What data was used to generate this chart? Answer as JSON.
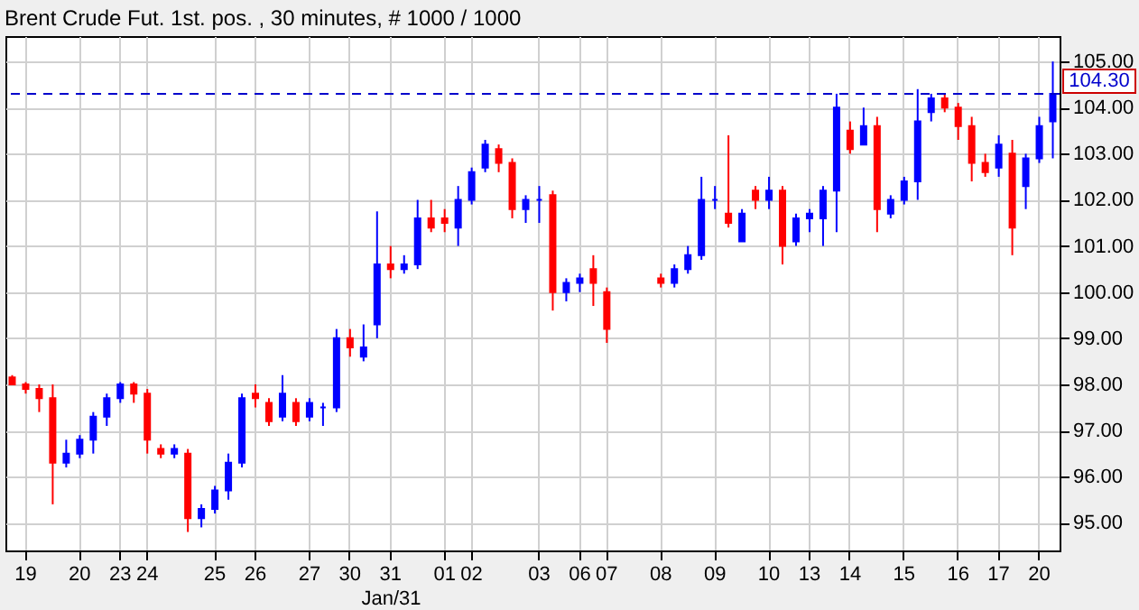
{
  "chart_data": {
    "type": "candlestick",
    "title": "Brent Crude Fut. 1st. pos. , 30 minutes, # 1000 / 1000",
    "categories": [
      null,
      "19",
      null,
      null,
      null,
      "20",
      null,
      null,
      "23",
      null,
      "24",
      null,
      null,
      null,
      null,
      "25",
      null,
      null,
      "26",
      null,
      null,
      null,
      "27",
      null,
      null,
      "30",
      null,
      null,
      "31",
      null,
      null,
      null,
      "01",
      null,
      "02",
      null,
      null,
      null,
      null,
      "03",
      null,
      null,
      "06",
      null,
      "07",
      null,
      null,
      null,
      "08",
      null,
      null,
      null,
      "09",
      null,
      null,
      null,
      "10",
      null,
      null,
      "13",
      null,
      null,
      "14",
      null,
      null,
      null,
      "15",
      null,
      null,
      null,
      "16",
      null,
      null,
      "17",
      null,
      null,
      "20",
      null
    ],
    "ohlc": [
      [
        98.15,
        98.2,
        98.0,
        98.0
      ],
      [
        98.0,
        98.05,
        97.8,
        97.9
      ],
      [
        97.9,
        98.0,
        97.4,
        97.7
      ],
      [
        97.7,
        98.0,
        95.4,
        96.3
      ],
      [
        96.3,
        96.8,
        96.2,
        96.5
      ],
      [
        96.5,
        96.9,
        96.4,
        96.8
      ],
      [
        96.8,
        97.4,
        96.5,
        97.3
      ],
      [
        97.3,
        97.8,
        97.1,
        97.7
      ],
      [
        97.7,
        98.05,
        97.6,
        98.0
      ],
      [
        98.0,
        98.05,
        97.6,
        97.8
      ],
      [
        97.8,
        97.9,
        96.5,
        96.8
      ],
      [
        96.6,
        96.7,
        96.4,
        96.5
      ],
      [
        96.5,
        96.7,
        96.4,
        96.6
      ],
      [
        96.5,
        96.6,
        94.8,
        95.1
      ],
      [
        95.1,
        95.4,
        94.9,
        95.3
      ],
      [
        95.3,
        95.8,
        95.2,
        95.7
      ],
      [
        95.7,
        96.5,
        95.5,
        96.3
      ],
      [
        96.3,
        97.8,
        96.2,
        97.7
      ],
      [
        97.8,
        98.0,
        97.5,
        97.7
      ],
      [
        97.6,
        97.7,
        97.1,
        97.2
      ],
      [
        97.3,
        98.2,
        97.2,
        97.8
      ],
      [
        97.6,
        97.7,
        97.1,
        97.2
      ],
      [
        97.3,
        97.7,
        97.2,
        97.6
      ],
      [
        97.5,
        97.6,
        97.1,
        97.5
      ],
      [
        97.5,
        99.2,
        97.4,
        99.0
      ],
      [
        99.0,
        99.2,
        98.6,
        98.8
      ],
      [
        98.6,
        99.3,
        98.5,
        98.8
      ],
      [
        99.3,
        101.75,
        99.0,
        100.6
      ],
      [
        100.6,
        101.0,
        100.3,
        100.5
      ],
      [
        100.5,
        100.8,
        100.4,
        100.6
      ],
      [
        100.6,
        102.0,
        100.5,
        101.6
      ],
      [
        101.6,
        102.0,
        101.3,
        101.4
      ],
      [
        101.6,
        101.8,
        101.3,
        101.5
      ],
      [
        101.4,
        102.3,
        101.0,
        102.0
      ],
      [
        102.0,
        102.7,
        101.9,
        102.6
      ],
      [
        102.7,
        103.3,
        102.6,
        103.2
      ],
      [
        103.1,
        103.2,
        102.6,
        102.8
      ],
      [
        102.8,
        102.9,
        101.6,
        101.8
      ],
      [
        101.8,
        102.1,
        101.5,
        102.0
      ],
      [
        102.0,
        102.3,
        101.5,
        102.0
      ],
      [
        102.1,
        102.2,
        99.6,
        100.0
      ],
      [
        100.0,
        100.3,
        99.8,
        100.2
      ],
      [
        100.2,
        100.4,
        100.0,
        100.3
      ],
      [
        100.5,
        100.8,
        99.7,
        100.2
      ],
      [
        100.0,
        100.1,
        98.9,
        99.2
      ],
      null,
      null,
      null,
      [
        100.3,
        100.4,
        100.1,
        100.2
      ],
      [
        100.2,
        100.6,
        100.1,
        100.5
      ],
      [
        100.5,
        101.0,
        100.4,
        100.8
      ],
      [
        100.8,
        102.5,
        100.7,
        102.0
      ],
      [
        102.0,
        102.3,
        101.8,
        102.0
      ],
      [
        101.7,
        103.4,
        101.4,
        101.5
      ],
      [
        101.1,
        101.8,
        101.1,
        101.7
      ],
      [
        102.2,
        102.3,
        101.8,
        102.0
      ],
      [
        102.0,
        102.5,
        101.8,
        102.2
      ],
      [
        102.2,
        102.3,
        100.6,
        101.0
      ],
      [
        101.1,
        101.7,
        101.0,
        101.6
      ],
      [
        101.6,
        101.8,
        101.3,
        101.7
      ],
      [
        101.6,
        102.3,
        101.0,
        102.2
      ],
      [
        102.2,
        104.3,
        101.3,
        104.0
      ],
      [
        103.5,
        103.7,
        103.0,
        103.1
      ],
      [
        103.2,
        104.0,
        103.2,
        103.6
      ],
      [
        103.6,
        103.8,
        101.3,
        101.8
      ],
      [
        101.7,
        102.1,
        101.6,
        102.0
      ],
      [
        102.0,
        102.5,
        101.9,
        102.4
      ],
      [
        102.4,
        104.4,
        102.0,
        103.7
      ],
      [
        103.9,
        104.3,
        103.7,
        104.2
      ],
      [
        104.2,
        104.3,
        103.9,
        104.0
      ],
      [
        104.0,
        104.1,
        103.3,
        103.6
      ],
      [
        103.6,
        103.8,
        102.4,
        102.8
      ],
      [
        102.8,
        103.0,
        102.5,
        102.6
      ],
      [
        102.7,
        103.4,
        102.5,
        103.2
      ],
      [
        103.0,
        103.3,
        100.8,
        101.4
      ],
      [
        102.3,
        103.0,
        101.8,
        102.9
      ],
      [
        102.9,
        103.8,
        102.8,
        103.6
      ],
      [
        103.7,
        105.0,
        102.9,
        104.3
      ]
    ],
    "colors": [
      "#ff0000",
      "#ff0000",
      "#ff0000",
      "#ff0000",
      "#0000ff",
      "#0000ff",
      "#0000ff",
      "#0000ff",
      "#0000ff",
      "#ff0000",
      "#ff0000",
      "#ff0000",
      "#0000ff",
      "#ff0000",
      "#0000ff",
      "#0000ff",
      "#0000ff",
      "#0000ff",
      "#ff0000",
      "#ff0000",
      "#0000ff",
      "#ff0000",
      "#0000ff",
      "#0000ff",
      "#0000ff",
      "#ff0000",
      "#0000ff",
      "#0000ff",
      "#ff0000",
      "#0000ff",
      "#0000ff",
      "#ff0000",
      "#ff0000",
      "#0000ff",
      "#0000ff",
      "#0000ff",
      "#ff0000",
      "#ff0000",
      "#0000ff",
      "#0000ff",
      "#ff0000",
      "#0000ff",
      "#0000ff",
      "#ff0000",
      "#ff0000",
      null,
      null,
      null,
      "#ff0000",
      "#0000ff",
      "#0000ff",
      "#0000ff",
      "#0000ff",
      "#ff0000",
      "#0000ff",
      "#ff0000",
      "#0000ff",
      "#ff0000",
      "#0000ff",
      "#0000ff",
      "#0000ff",
      "#0000ff",
      "#ff0000",
      "#0000ff",
      "#ff0000",
      "#0000ff",
      "#0000ff",
      "#0000ff",
      "#0000ff",
      "#ff0000",
      "#ff0000",
      "#ff0000",
      "#ff0000",
      "#0000ff",
      "#ff0000",
      "#0000ff",
      "#0000ff",
      "#0000ff"
    ],
    "ylim": [
      94.4,
      105.55
    ],
    "yticks": [
      {
        "value": 95,
        "label": "95.00"
      },
      {
        "value": 96,
        "label": "96.00"
      },
      {
        "value": 97,
        "label": "97.00"
      },
      {
        "value": 98,
        "label": "98.00"
      },
      {
        "value": 99,
        "label": "99.00"
      },
      {
        "value": 100,
        "label": "100.00"
      },
      {
        "value": 101,
        "label": "101.00"
      },
      {
        "value": 102,
        "label": "102.00"
      },
      {
        "value": 103,
        "label": "103.00"
      },
      {
        "value": 104,
        "label": "104.00"
      },
      {
        "value": 105,
        "label": "105.00"
      }
    ],
    "grid": true,
    "ref_lines": [
      {
        "axis": "y",
        "value": 104.3,
        "label": "104.30",
        "color": "#0000cc",
        "line_style": "dashed"
      }
    ],
    "annotations": [
      "Jan/31"
    ]
  }
}
